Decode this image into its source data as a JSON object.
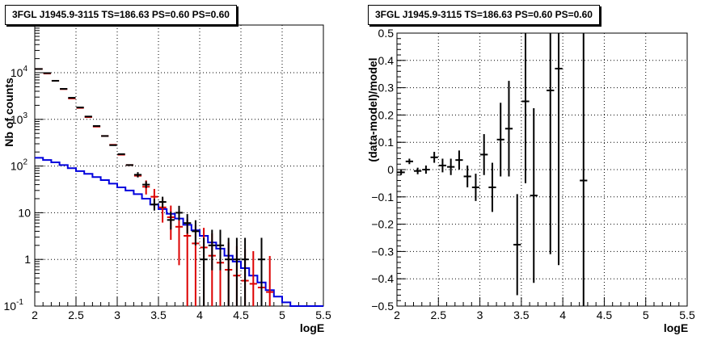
{
  "chart_data": [
    {
      "type": "histogram",
      "title": "3FGL J1945.9-3115 TS=186.63 PS=0.60 PS=0.60",
      "xlabel": "logE",
      "ylabel": "Nb of counts",
      "xlim": [
        2,
        5.5
      ],
      "ylim": [
        0.1,
        70000
      ],
      "yscale": "log",
      "grid": true,
      "x_ticks": [
        "2",
        "2.5",
        "3",
        "3.5",
        "4",
        "4.5",
        "5",
        "5.5"
      ],
      "y_ticks": [
        "10^-1",
        "1",
        "10",
        "10^2",
        "10^3",
        "10^4"
      ],
      "bin_width": 0.1,
      "series": [
        {
          "role": "data",
          "color": "#000000",
          "points": [
            {
              "x": 2.05,
              "y": 12000
            },
            {
              "x": 2.15,
              "y": 9800
            },
            {
              "x": 2.25,
              "y": 6700
            },
            {
              "x": 2.35,
              "y": 4500
            },
            {
              "x": 2.45,
              "y": 2900
            },
            {
              "x": 2.55,
              "y": 1800
            },
            {
              "x": 2.65,
              "y": 1150
            },
            {
              "x": 2.75,
              "y": 720
            },
            {
              "x": 2.85,
              "y": 440
            },
            {
              "x": 2.95,
              "y": 280
            },
            {
              "x": 3.05,
              "y": 180
            },
            {
              "x": 3.15,
              "y": 105
            },
            {
              "x": 3.25,
              "y": 65
            },
            {
              "x": 3.35,
              "y": 40
            },
            {
              "x": 3.45,
              "y": 15
            },
            {
              "x": 3.55,
              "y": 17
            },
            {
              "x": 3.65,
              "y": 7
            },
            {
              "x": 3.75,
              "y": 10
            },
            {
              "x": 3.85,
              "y": 6
            },
            {
              "x": 3.95,
              "y": 4
            },
            {
              "x": 4.05,
              "y": 1
            },
            {
              "x": 4.15,
              "y": 2
            },
            {
              "x": 4.25,
              "y": 2
            },
            {
              "x": 4.35,
              "y": 1
            },
            {
              "x": 4.45,
              "y": 1
            },
            {
              "x": 4.55,
              "y": 1
            },
            {
              "x": 4.75,
              "y": 1
            }
          ]
        },
        {
          "role": "model",
          "color": "#dd0000",
          "points": [
            {
              "x": 2.05,
              "y": 12000
            },
            {
              "x": 2.15,
              "y": 9600
            },
            {
              "x": 2.25,
              "y": 6700
            },
            {
              "x": 2.35,
              "y": 4450
            },
            {
              "x": 2.45,
              "y": 2800
            },
            {
              "x": 2.55,
              "y": 1760
            },
            {
              "x": 2.65,
              "y": 1120
            },
            {
              "x": 2.75,
              "y": 700
            },
            {
              "x": 2.85,
              "y": 440
            },
            {
              "x": 2.95,
              "y": 285
            },
            {
              "x": 3.05,
              "y": 175
            },
            {
              "x": 3.15,
              "y": 105
            },
            {
              "x": 3.25,
              "y": 62
            },
            {
              "x": 3.35,
              "y": 36
            },
            {
              "x": 3.45,
              "y": 22
            },
            {
              "x": 3.55,
              "y": 13
            },
            {
              "x": 3.65,
              "y": 8
            },
            {
              "x": 3.75,
              "y": 5
            },
            {
              "x": 3.85,
              "y": 3.2
            },
            {
              "x": 3.95,
              "y": 2.2
            },
            {
              "x": 4.05,
              "y": 1.8
            },
            {
              "x": 4.15,
              "y": 1.2
            },
            {
              "x": 4.25,
              "y": 0.85
            },
            {
              "x": 4.35,
              "y": 0.6
            },
            {
              "x": 4.45,
              "y": 0.45
            },
            {
              "x": 4.55,
              "y": 0.35
            },
            {
              "x": 4.65,
              "y": 0.3
            },
            {
              "x": 4.75,
              "y": 0.25
            },
            {
              "x": 4.85,
              "y": 0.2
            }
          ]
        },
        {
          "role": "component",
          "color": "#0000dd",
          "type": "step",
          "bins": [
            {
              "x": 2.05,
              "y": 150
            },
            {
              "x": 2.15,
              "y": 135
            },
            {
              "x": 2.25,
              "y": 120
            },
            {
              "x": 2.35,
              "y": 105
            },
            {
              "x": 2.45,
              "y": 90
            },
            {
              "x": 2.55,
              "y": 78
            },
            {
              "x": 2.65,
              "y": 68
            },
            {
              "x": 2.75,
              "y": 58
            },
            {
              "x": 2.85,
              "y": 50
            },
            {
              "x": 2.95,
              "y": 42
            },
            {
              "x": 3.05,
              "y": 35
            },
            {
              "x": 3.15,
              "y": 30
            },
            {
              "x": 3.25,
              "y": 25
            },
            {
              "x": 3.35,
              "y": 20
            },
            {
              "x": 3.45,
              "y": 15
            },
            {
              "x": 3.55,
              "y": 12
            },
            {
              "x": 3.65,
              "y": 9.5
            },
            {
              "x": 3.75,
              "y": 7.5
            },
            {
              "x": 3.85,
              "y": 5.5
            },
            {
              "x": 3.95,
              "y": 4.2
            },
            {
              "x": 4.05,
              "y": 3.2
            },
            {
              "x": 4.15,
              "y": 2.3
            },
            {
              "x": 4.25,
              "y": 1.7
            },
            {
              "x": 4.35,
              "y": 1.2
            },
            {
              "x": 4.45,
              "y": 0.9
            },
            {
              "x": 4.55,
              "y": 0.65
            },
            {
              "x": 4.65,
              "y": 0.45
            },
            {
              "x": 4.75,
              "y": 0.32
            },
            {
              "x": 4.85,
              "y": 0.22
            },
            {
              "x": 4.95,
              "y": 0.16
            },
            {
              "x": 5.05,
              "y": 0.12
            },
            {
              "x": 5.15,
              "y": 0.1
            },
            {
              "x": 5.25,
              "y": 0.1
            },
            {
              "x": 5.35,
              "y": 0.1
            },
            {
              "x": 5.45,
              "y": 0.1
            }
          ]
        }
      ]
    },
    {
      "type": "scatter",
      "title": "3FGL J1945.9-3115 TS=186.63 PS=0.60 PS=0.60",
      "xlabel": "logE",
      "ylabel": "(data-model)/model",
      "xlim": [
        2,
        5.5
      ],
      "ylim": [
        -0.5,
        0.5
      ],
      "grid": true,
      "x_ticks": [
        "2",
        "2.5",
        "3",
        "3.5",
        "4",
        "4.5",
        "5",
        "5.5"
      ],
      "y_ticks": [
        "-0.5",
        "-0.4",
        "-0.3",
        "-0.2",
        "-0.1",
        "0",
        "0.1",
        "0.2",
        "0.3",
        "0.4",
        "0.5"
      ],
      "bin_width": 0.1,
      "series": [
        {
          "role": "residuals",
          "color": "#000000",
          "points": [
            {
              "x": 2.05,
              "y": -0.01,
              "err": 0.01
            },
            {
              "x": 2.15,
              "y": 0.03,
              "err": 0.01
            },
            {
              "x": 2.25,
              "y": -0.005,
              "err": 0.012
            },
            {
              "x": 2.35,
              "y": 0.0,
              "err": 0.015
            },
            {
              "x": 2.45,
              "y": 0.045,
              "err": 0.02
            },
            {
              "x": 2.55,
              "y": 0.015,
              "err": 0.025
            },
            {
              "x": 2.65,
              "y": 0.01,
              "err": 0.03
            },
            {
              "x": 2.75,
              "y": 0.035,
              "err": 0.035
            },
            {
              "x": 2.85,
              "y": -0.025,
              "err": 0.04
            },
            {
              "x": 2.95,
              "y": -0.065,
              "err": 0.05
            },
            {
              "x": 3.05,
              "y": 0.055,
              "err": 0.075
            },
            {
              "x": 3.15,
              "y": -0.065,
              "err": 0.09
            },
            {
              "x": 3.25,
              "y": 0.11,
              "err": 0.135
            },
            {
              "x": 3.35,
              "y": 0.15,
              "err": 0.175
            },
            {
              "x": 3.45,
              "y": -0.275,
              "err": 0.185
            },
            {
              "x": 3.55,
              "y": 0.25,
              "err": 0.3
            },
            {
              "x": 3.65,
              "y": -0.095,
              "err": 0.32
            },
            {
              "x": 3.85,
              "y": 0.29,
              "err": 0.6
            },
            {
              "x": 3.95,
              "y": 0.37,
              "err": 0.72
            },
            {
              "x": 4.25,
              "y": -0.04,
              "err": 1.0
            }
          ]
        }
      ]
    }
  ]
}
